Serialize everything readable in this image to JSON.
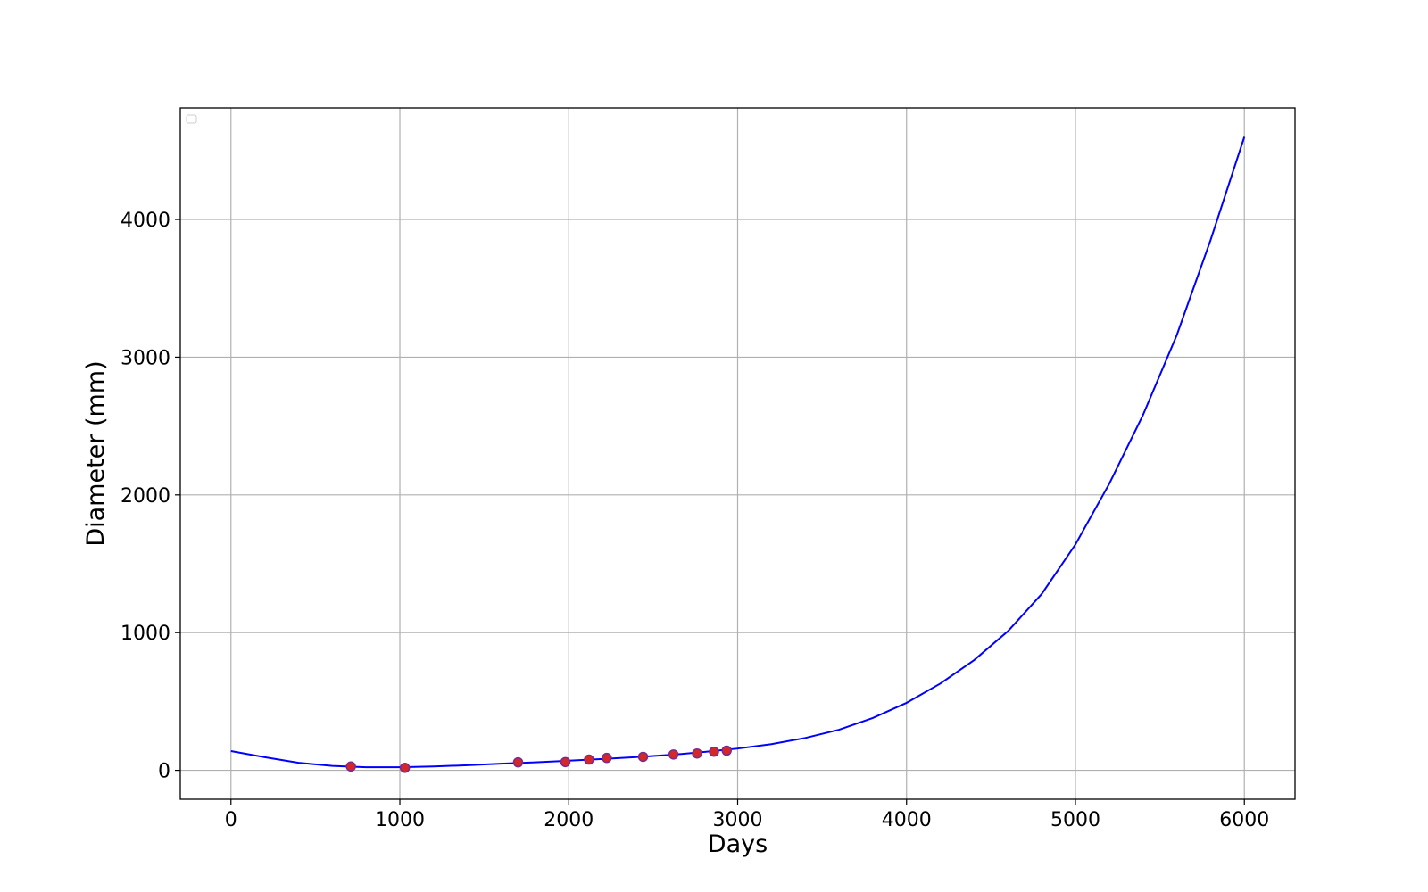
{
  "chart_data": {
    "type": "scatter",
    "xlabel": "Days",
    "ylabel": "Diameter (mm)",
    "xlim": [
      -300,
      6300
    ],
    "ylim": [
      -210,
      4810
    ],
    "x_ticks": [
      0,
      1000,
      2000,
      3000,
      4000,
      5000,
      6000
    ],
    "y_ticks": [
      0,
      1000,
      2000,
      3000,
      4000
    ],
    "x_tick_labels": [
      "0",
      "1000",
      "2000",
      "3000",
      "4000",
      "5000",
      "6000"
    ],
    "y_tick_labels": [
      "0",
      "1000",
      "2000",
      "3000",
      "4000"
    ],
    "grid": true,
    "legend": {
      "placement": "top-left",
      "entries": []
    },
    "series": [
      {
        "type": "scatter",
        "color": "#d62728",
        "edge_color": "#7b2a8a",
        "points": [
          {
            "x": 710,
            "y": 28
          },
          {
            "x": 1030,
            "y": 18
          },
          {
            "x": 1700,
            "y": 58
          },
          {
            "x": 1980,
            "y": 60
          },
          {
            "x": 2120,
            "y": 78
          },
          {
            "x": 2225,
            "y": 90
          },
          {
            "x": 2440,
            "y": 98
          },
          {
            "x": 2620,
            "y": 115
          },
          {
            "x": 2760,
            "y": 122
          },
          {
            "x": 2860,
            "y": 135
          },
          {
            "x": 2935,
            "y": 143
          }
        ]
      },
      {
        "type": "line",
        "color": "#0000ff",
        "points": [
          {
            "x": 0,
            "y": 140
          },
          {
            "x": 200,
            "y": 95
          },
          {
            "x": 400,
            "y": 55
          },
          {
            "x": 600,
            "y": 32
          },
          {
            "x": 800,
            "y": 22
          },
          {
            "x": 1000,
            "y": 22
          },
          {
            "x": 1200,
            "y": 28
          },
          {
            "x": 1400,
            "y": 37
          },
          {
            "x": 1600,
            "y": 48
          },
          {
            "x": 1800,
            "y": 58
          },
          {
            "x": 2000,
            "y": 70
          },
          {
            "x": 2200,
            "y": 82
          },
          {
            "x": 2400,
            "y": 96
          },
          {
            "x": 2600,
            "y": 112
          },
          {
            "x": 2800,
            "y": 133
          },
          {
            "x": 3000,
            "y": 158
          },
          {
            "x": 3200,
            "y": 190
          },
          {
            "x": 3400,
            "y": 235
          },
          {
            "x": 3600,
            "y": 295
          },
          {
            "x": 3800,
            "y": 380
          },
          {
            "x": 4000,
            "y": 490
          },
          {
            "x": 4200,
            "y": 630
          },
          {
            "x": 4400,
            "y": 800
          },
          {
            "x": 4600,
            "y": 1010
          },
          {
            "x": 4800,
            "y": 1280
          },
          {
            "x": 5000,
            "y": 1640
          },
          {
            "x": 5200,
            "y": 2080
          },
          {
            "x": 5400,
            "y": 2580
          },
          {
            "x": 5600,
            "y": 3160
          },
          {
            "x": 5800,
            "y": 3850
          },
          {
            "x": 6000,
            "y": 4600
          }
        ]
      }
    ]
  }
}
